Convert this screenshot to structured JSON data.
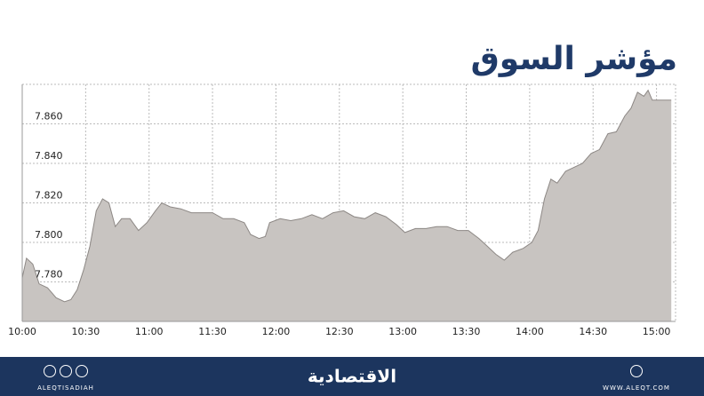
{
  "chart_data": {
    "type": "area",
    "title": "مؤشر السوق",
    "color": "#c8c4c1",
    "line_color": "#8d8885",
    "grid": true,
    "x": [
      0,
      2,
      5,
      8,
      12,
      16,
      20,
      23,
      26,
      29,
      32,
      35,
      38,
      41,
      44,
      47,
      51,
      55,
      59,
      63,
      66,
      70,
      75,
      80,
      85,
      90,
      95,
      100,
      105,
      108,
      112,
      115,
      117,
      122,
      127,
      132,
      137,
      142,
      147,
      152,
      157,
      162,
      167,
      172,
      177,
      181,
      186,
      191,
      196,
      201,
      206,
      211,
      216,
      220,
      224,
      228,
      232,
      237,
      241,
      244,
      247,
      250,
      253,
      257,
      261,
      265,
      269,
      273,
      277,
      281,
      285,
      288,
      291,
      294,
      296,
      298,
      307
    ],
    "values": [
      7.782,
      7.792,
      7.789,
      7.779,
      7.777,
      7.772,
      7.77,
      7.771,
      7.776,
      7.786,
      7.798,
      7.816,
      7.822,
      7.82,
      7.808,
      7.812,
      7.812,
      7.806,
      7.81,
      7.816,
      7.82,
      7.818,
      7.817,
      7.815,
      7.815,
      7.815,
      7.812,
      7.812,
      7.81,
      7.804,
      7.802,
      7.803,
      7.81,
      7.812,
      7.811,
      7.812,
      7.814,
      7.812,
      7.815,
      7.816,
      7.813,
      7.812,
      7.815,
      7.813,
      7.809,
      7.805,
      7.807,
      7.807,
      7.808,
      7.808,
      7.806,
      7.806,
      7.802,
      7.798,
      7.794,
      7.791,
      7.795,
      7.797,
      7.8,
      7.806,
      7.822,
      7.832,
      7.83,
      7.836,
      7.838,
      7.84,
      7.845,
      7.847,
      7.855,
      7.856,
      7.864,
      7.868,
      7.876,
      7.874,
      7.877,
      7.872,
      7.872
    ],
    "xlim": [
      0,
      309
    ],
    "xticks": [
      {
        "value": 0,
        "label": "10:00"
      },
      {
        "value": 30,
        "label": "10:30"
      },
      {
        "value": 60,
        "label": "11:00"
      },
      {
        "value": 90,
        "label": "11:30"
      },
      {
        "value": 120,
        "label": "12:00"
      },
      {
        "value": 150,
        "label": "12:30"
      },
      {
        "value": 180,
        "label": "13:00"
      },
      {
        "value": 210,
        "label": "13:30"
      },
      {
        "value": 240,
        "label": "14:00"
      },
      {
        "value": 270,
        "label": "14:30"
      },
      {
        "value": 300,
        "label": "15:00"
      }
    ],
    "ylim": [
      7.76,
      7.88
    ],
    "yticks": [
      {
        "value": 7.78,
        "label": "7.780"
      },
      {
        "value": 7.8,
        "label": "7.800"
      },
      {
        "value": 7.82,
        "label": "7.820"
      },
      {
        "value": 7.84,
        "label": "7.840"
      },
      {
        "value": 7.86,
        "label": "7.860"
      }
    ]
  },
  "footer": {
    "brand": "الاقتصادية",
    "handle": "ALEQTISADIAH",
    "website": "WWW.ALEQT.COM"
  }
}
